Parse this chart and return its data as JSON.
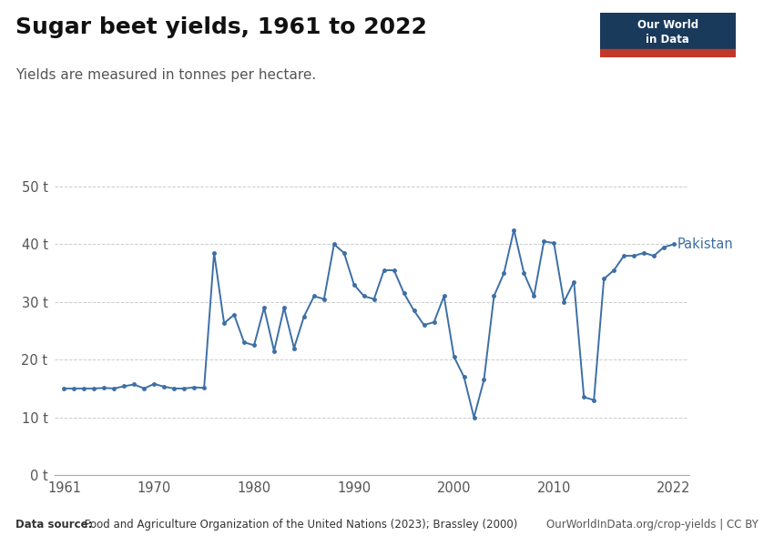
{
  "title": "Sugar beet yields, 1961 to 2022",
  "subtitle": "Yields are measured in tonnes per hectare.",
  "line_color": "#3d6fa5",
  "background_color": "#ffffff",
  "title_fontsize": 18,
  "subtitle_fontsize": 11,
  "yticks": [
    0,
    10,
    20,
    30,
    40,
    50
  ],
  "ytick_labels": [
    "0 t",
    "10 t",
    "20 t",
    "30 t",
    "40 t",
    "50 t"
  ],
  "xticks": [
    1961,
    1970,
    1980,
    1990,
    2000,
    2010,
    2022
  ],
  "ylim": [
    0,
    53
  ],
  "xlim": [
    1960,
    2023.5
  ],
  "footer_bold": "Data source:",
  "footer_normal": " Food and Agriculture Organization of the United Nations (2023); Brassley (2000)",
  "footer_right": "OurWorldInData.org/crop-yields | CC BY",
  "label": "Pakistan",
  "years": [
    1961,
    1962,
    1963,
    1964,
    1965,
    1966,
    1967,
    1968,
    1969,
    1970,
    1971,
    1972,
    1973,
    1974,
    1975,
    1976,
    1977,
    1978,
    1979,
    1980,
    1981,
    1982,
    1983,
    1984,
    1985,
    1986,
    1987,
    1988,
    1989,
    1990,
    1991,
    1992,
    1993,
    1994,
    1995,
    1996,
    1997,
    1998,
    1999,
    2000,
    2001,
    2002,
    2003,
    2004,
    2005,
    2006,
    2007,
    2008,
    2009,
    2010,
    2011,
    2012,
    2013,
    2014,
    2015,
    2016,
    2017,
    2018,
    2019,
    2020,
    2021,
    2022
  ],
  "values": [
    15.0,
    15.0,
    15.0,
    15.0,
    15.1,
    15.0,
    15.4,
    15.7,
    15.0,
    15.8,
    15.3,
    15.0,
    15.0,
    15.2,
    15.1,
    38.5,
    26.3,
    27.8,
    23.0,
    22.5,
    29.0,
    21.5,
    29.0,
    22.0,
    27.5,
    31.0,
    30.5,
    40.0,
    38.5,
    33.0,
    31.0,
    30.5,
    35.5,
    35.5,
    31.5,
    28.5,
    26.0,
    26.5,
    31.0,
    20.5,
    17.0,
    10.0,
    16.5,
    31.0,
    35.0,
    42.5,
    35.0,
    31.0,
    40.5,
    40.2,
    30.0,
    33.5,
    13.5,
    13.0,
    34.0,
    35.5,
    38.0,
    38.0,
    38.5,
    38.0,
    39.5,
    40.0
  ],
  "owid_box_color": "#1a3a5c",
  "owid_bar_color": "#c0392b",
  "owid_text1": "Our World",
  "owid_text2": "in Data"
}
